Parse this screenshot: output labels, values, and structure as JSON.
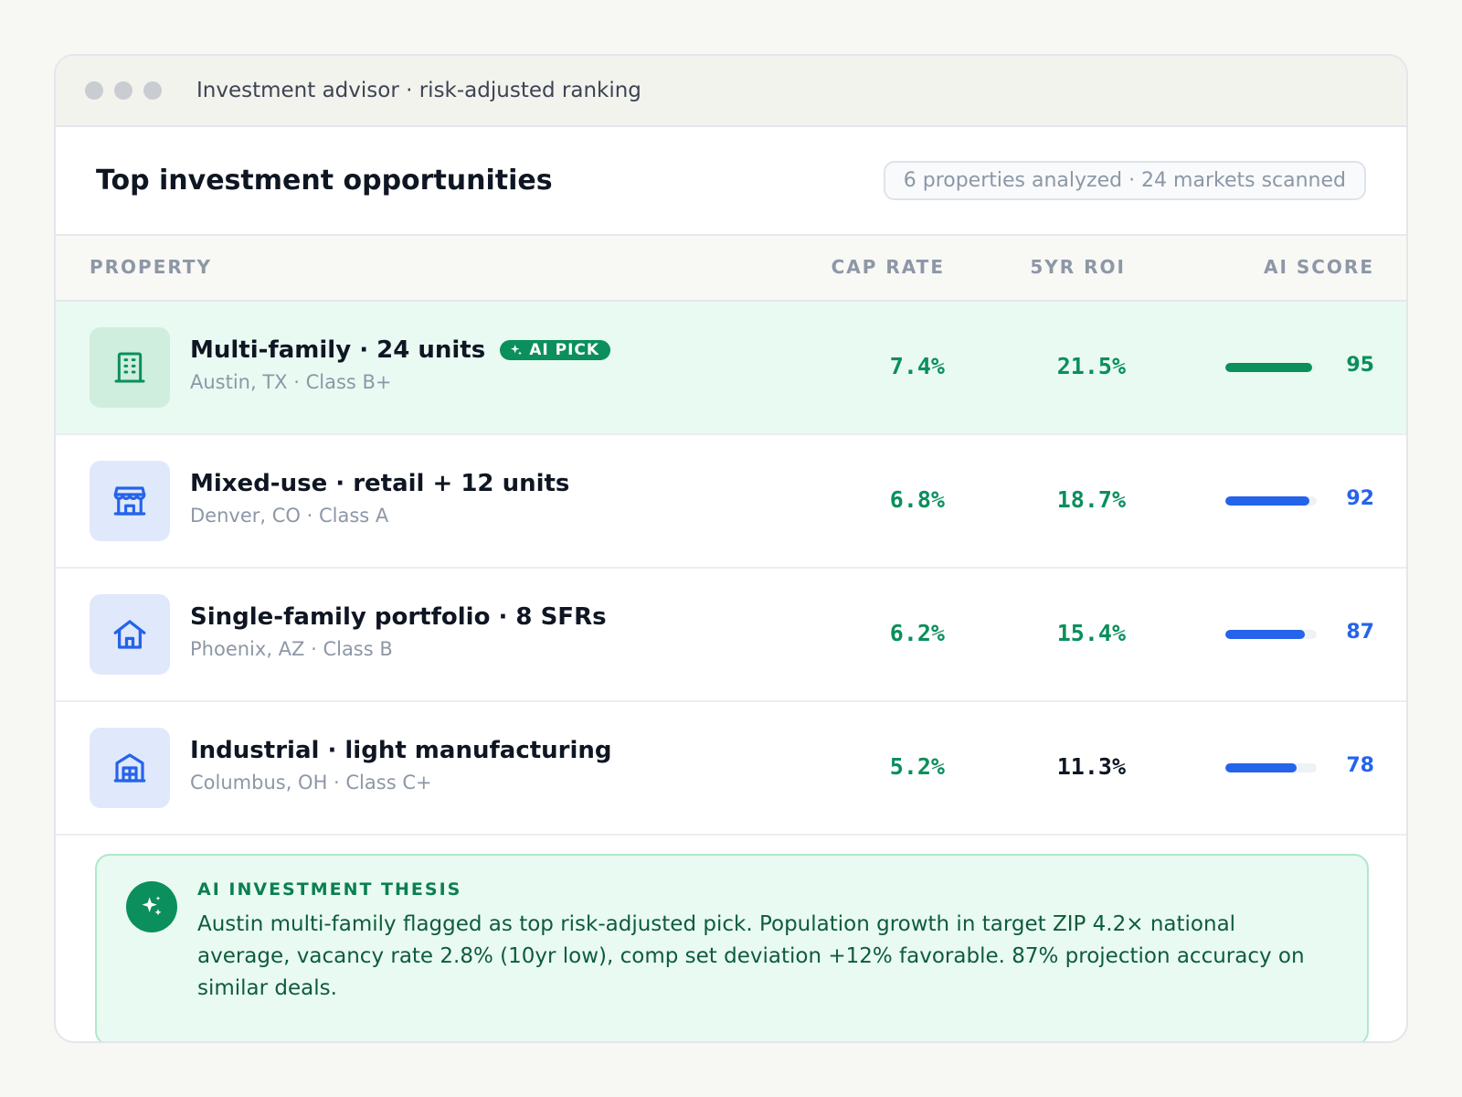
{
  "window": {
    "title": "Investment advisor · risk-adjusted ranking"
  },
  "header": {
    "title": "Top investment opportunities",
    "badge": "6 properties analyzed · 24 markets scanned"
  },
  "columns": {
    "property": "PROPERTY",
    "cap_rate": "CAP RATE",
    "roi": "5YR ROI",
    "ai_score": "AI SCORE"
  },
  "rows": [
    {
      "name": "Multi-family · 24 units",
      "badge": "AI PICK",
      "subtitle": "Austin, TX · Class B+",
      "icon": "building-icon",
      "cap_rate": "7.4%",
      "roi": "21.5%",
      "score": "95",
      "score_fraction": 0.95,
      "highlighted": true
    },
    {
      "name": "Mixed-use · retail + 12 units",
      "subtitle": "Denver, CO · Class A",
      "icon": "storefront-icon",
      "cap_rate": "6.8%",
      "roi": "18.7%",
      "score": "92",
      "score_fraction": 0.92
    },
    {
      "name": "Single-family portfolio · 8 SFRs",
      "subtitle": "Phoenix, AZ · Class B",
      "icon": "house-icon",
      "cap_rate": "6.2%",
      "roi": "15.4%",
      "score": "87",
      "score_fraction": 0.87
    },
    {
      "name": "Industrial · light manufacturing",
      "subtitle": "Columbus, OH · Class C+",
      "icon": "warehouse-icon",
      "cap_rate": "5.2%",
      "roi": "11.3%",
      "score": "78",
      "score_fraction": 0.78
    }
  ],
  "thesis": {
    "title": "AI INVESTMENT THESIS",
    "body": "Austin multi-family flagged as top risk-adjusted pick. Population growth in target ZIP 4.2× national average, vacancy rate 2.8% (10yr low), comp set deviation +12% favorable. 87% projection accuracy on similar deals.",
    "icon": "sparkle-icon"
  },
  "colors": {
    "accent_green": "#0b8f5c",
    "accent_blue": "#2563eb",
    "highlight_bg": "#e9faf2"
  }
}
